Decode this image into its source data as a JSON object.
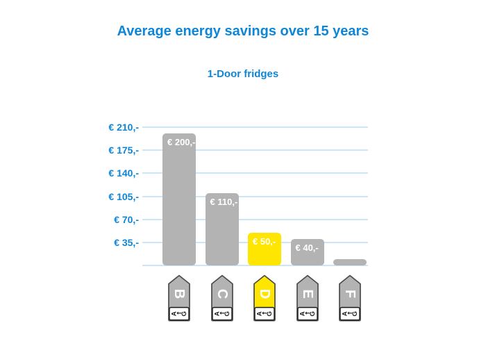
{
  "title": "Average energy savings over 15 years",
  "subtitle": "1-Door fridges",
  "chart_data": {
    "type": "bar",
    "title": "Average energy savings over 15 years",
    "subtitle": "1-Door fridges",
    "categories": [
      "B",
      "C",
      "D",
      "E",
      "F"
    ],
    "values": [
      200,
      110,
      50,
      40,
      10
    ],
    "bar_labels": [
      "€ 200,-",
      "€ 110,-",
      "€ 50,-",
      "€ 40,-",
      ""
    ],
    "highlight_category": "D",
    "xlabel": "",
    "ylabel": "",
    "ylim": [
      0,
      210
    ],
    "y_ticks": [
      {
        "value": 210,
        "label": "€ 210,-"
      },
      {
        "value": 175,
        "label": "€ 175,-"
      },
      {
        "value": 140,
        "label": "€ 140,-"
      },
      {
        "value": 105,
        "label": "€ 105,-"
      },
      {
        "value": 70,
        "label": "€ 70,-"
      },
      {
        "value": 35,
        "label": "€ 35,-"
      }
    ],
    "grid": true,
    "legend": false,
    "x_axis_tag_scale": {
      "start": "A",
      "arrow": "←",
      "end": "G"
    },
    "colors": {
      "title_blue": "#0e86d8",
      "axis_label_blue": "#0e86d8",
      "grid_blue": "#cde6f7",
      "bar_gray": "#b3b3b3",
      "bar_highlight_yellow": "#ffe600",
      "bar_value_text": "#ffffff",
      "tag_border": "#4a4a4a",
      "tag_letter": "#ffffff",
      "tag_scale_box_bg": "#ffffff",
      "tag_scale_box_border": "#1a1a1a",
      "tag_scale_text": "#1a1a1a",
      "background": "#ffffff"
    }
  }
}
